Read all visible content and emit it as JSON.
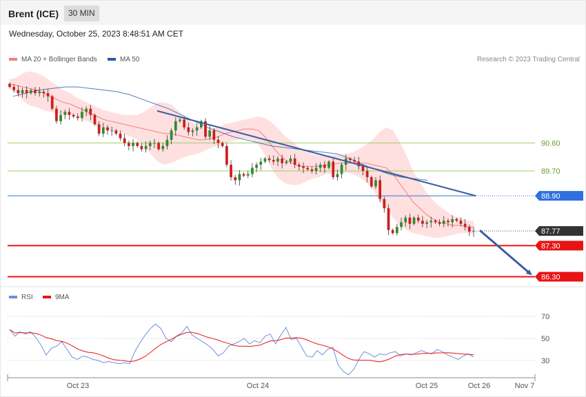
{
  "header": {
    "instrument": "Brent (ICE)",
    "timeframe": "30 MIN"
  },
  "timestamp": "Wednesday, October 25, 2023 8:48:51 AM CET",
  "legend": {
    "ma20_label": "MA 20 + Bollinger Bands",
    "ma50_label": "MA 50",
    "rsi_label": "RSI",
    "ma9_label": "9MA"
  },
  "copyright": "Research © 2023 Trading Central",
  "colors": {
    "bullish": "#2e8b2e",
    "bearish": "#d01c1c",
    "ma20": "#f08080",
    "ma50": "#2b5aa8",
    "bands": "#ffd6d6",
    "resistance": "#9acd62",
    "pivot": "#2f6fe0",
    "support": "#e81414",
    "trendline": "#3a5da0",
    "rsi": "#6f8fd8"
  },
  "chart_data": [
    {
      "type": "candlestick",
      "x_ticks": [
        "Oct 23",
        "Oct 24",
        "Oct 25",
        "Oct 26",
        "Nov 7"
      ],
      "ylim": [
        86.0,
        93.4
      ],
      "current_price": {
        "value": 87.77,
        "label": "87.77"
      },
      "levels": [
        {
          "value": 90.6,
          "label": "90.60",
          "kind": "resistance"
        },
        {
          "value": 89.7,
          "label": "89.70",
          "kind": "resistance"
        },
        {
          "value": 88.9,
          "label": "88.90",
          "kind": "pivot"
        },
        {
          "value": 87.3,
          "label": "87.30",
          "kind": "support"
        },
        {
          "value": 86.3,
          "label": "86.30",
          "kind": "support"
        }
      ],
      "close": [
        92.4,
        92.3,
        92.2,
        92.3,
        92.2,
        92.3,
        92.2,
        92.25,
        92.2,
        92.1,
        91.7,
        91.3,
        91.5,
        91.6,
        91.5,
        91.45,
        91.4,
        91.6,
        91.7,
        91.5,
        91.2,
        90.9,
        91.1,
        91.0,
        91.0,
        90.9,
        90.75,
        90.6,
        90.5,
        90.6,
        90.5,
        90.4,
        90.5,
        90.6,
        90.6,
        90.4,
        90.5,
        90.7,
        91.0,
        91.3,
        91.35,
        91.1,
        90.95,
        91.0,
        91.1,
        91.3,
        90.8,
        91.0,
        90.7,
        90.6,
        90.5,
        89.9,
        89.5,
        89.4,
        89.6,
        89.55,
        89.6,
        89.8,
        89.9,
        90.0,
        90.1,
        90.05,
        90.0,
        90.1,
        89.95,
        90.0,
        90.1,
        89.9,
        89.85,
        89.8,
        89.75,
        89.7,
        89.8,
        89.9,
        89.8,
        90.0,
        89.5,
        89.6,
        89.9,
        90.1,
        90.05,
        90.0,
        89.85,
        89.7,
        89.5,
        89.2,
        89.4,
        88.8,
        88.5,
        87.8,
        87.7,
        87.9,
        88.05,
        88.2,
        88.0,
        88.2,
        88.1,
        88.0,
        88.05,
        88.1,
        88.05,
        88.0,
        88.1,
        88.05,
        88.15,
        88.1,
        88.0,
        87.9,
        87.75,
        87.77
      ],
      "ma20": [
        92.5,
        92.45,
        92.4,
        92.35,
        92.3,
        92.2,
        92.1,
        92.0,
        91.9,
        91.85,
        91.75,
        91.65,
        91.55,
        91.45,
        91.35,
        91.3,
        91.25,
        91.2,
        91.15,
        91.1,
        91.05,
        91.0,
        90.95,
        90.9,
        90.9,
        90.85,
        90.8,
        90.75,
        90.7,
        90.7,
        90.75,
        90.8,
        90.9,
        90.95,
        91.0,
        91.05,
        91.05,
        91.0,
        90.8,
        90.5,
        90.25,
        90.05,
        89.95,
        89.85,
        89.85,
        89.85,
        89.85,
        89.9,
        89.9,
        89.95,
        89.95,
        89.95,
        89.95,
        89.95,
        89.9,
        89.85,
        89.8,
        89.6,
        89.3,
        89.0,
        88.7,
        88.5,
        88.3,
        88.15,
        88.05,
        88.0,
        87.95,
        87.95,
        87.9,
        87.9
      ],
      "ma50": [
        92.1,
        92.2,
        92.3,
        92.35,
        92.4,
        92.4,
        92.35,
        92.3,
        92.25,
        92.15,
        92.0,
        91.85,
        91.7,
        91.5,
        91.3,
        91.1,
        90.95,
        90.8,
        90.7,
        90.6,
        90.5,
        90.45,
        90.4,
        90.35,
        90.3,
        90.25,
        90.1,
        89.9,
        89.75,
        89.6,
        89.5,
        89.45,
        89.4
      ],
      "rsi": [
        58,
        52,
        56,
        54,
        56,
        51,
        44,
        35,
        41,
        43,
        47,
        40,
        33,
        31,
        34,
        33,
        31,
        30,
        28,
        29,
        28,
        27,
        28,
        27,
        38,
        46,
        53,
        59,
        63,
        59,
        50,
        47,
        52,
        55,
        61,
        53,
        50,
        47,
        44,
        40,
        34,
        37,
        43,
        45,
        47,
        50,
        45,
        48,
        46,
        52,
        54,
        45,
        53,
        60,
        49,
        50,
        42,
        34,
        33,
        39,
        35,
        40,
        42,
        26,
        20,
        17,
        22,
        31,
        38,
        36,
        33,
        36,
        35,
        37,
        38,
        34,
        36,
        35,
        37,
        39,
        37,
        36,
        40,
        38,
        35,
        33,
        31,
        34,
        36,
        33
      ]
    }
  ]
}
